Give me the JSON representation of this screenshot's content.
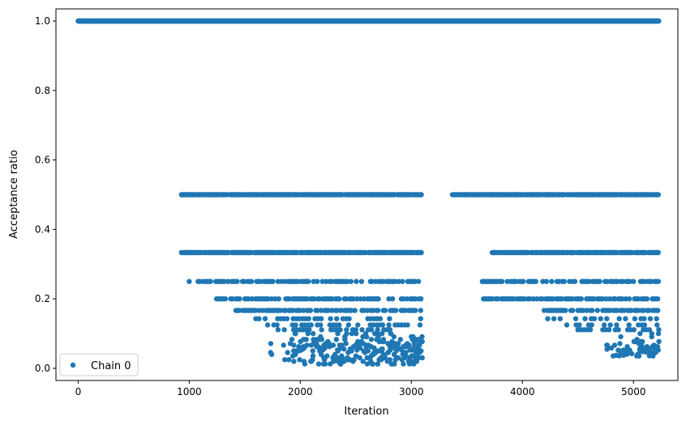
{
  "chart_data": {
    "type": "scatter",
    "title": "",
    "xlabel": "Iteration",
    "ylabel": "Acceptance ratio",
    "xlim": [
      -200,
      5400
    ],
    "ylim": [
      -0.035,
      1.035
    ],
    "xticks": [
      0,
      1000,
      2000,
      3000,
      4000,
      5000
    ],
    "xtick_labels": [
      "0",
      "1000",
      "2000",
      "3000",
      "4000",
      "5000"
    ],
    "yticks": [
      0.0,
      0.2,
      0.4,
      0.6,
      0.8,
      1.0
    ],
    "ytick_labels": [
      "0.0",
      "0.2",
      "0.4",
      "0.6",
      "0.8",
      "1.0"
    ],
    "grid": false,
    "legend": {
      "position": "lower-left",
      "entries": [
        "Chain 0"
      ]
    },
    "series": [
      {
        "name": "Chain 0",
        "color": "#1f77b4",
        "marker": "circle",
        "x_range": [
          0,
          5230
        ],
        "bands": [
          {
            "y": 1.0,
            "x_start": 0,
            "x_end": 5230,
            "density": "solid"
          },
          {
            "y": 0.5,
            "segments": [
              [
                930,
                3090
              ],
              [
                3370,
                5230
              ]
            ],
            "density": "dense"
          },
          {
            "y": 0.3333,
            "segments": [
              [
                930,
                3090
              ],
              [
                3720,
                5230
              ]
            ],
            "density": "dense"
          },
          {
            "y": 0.25,
            "segments": [
              [
                1000,
                3090
              ],
              [
                3640,
                5230
              ]
            ],
            "density": "medium"
          },
          {
            "y": 0.2,
            "segments": [
              [
                1230,
                3090
              ],
              [
                3650,
                5230
              ]
            ],
            "density": "medium"
          },
          {
            "y": 0.1667,
            "segments": [
              [
                1420,
                3090
              ],
              [
                4180,
                5230
              ]
            ],
            "density": "medium"
          },
          {
            "y": 0.1429,
            "segments": [
              [
                1600,
                3090
              ],
              [
                4200,
                5230
              ]
            ],
            "density": "sparse"
          },
          {
            "y": 0.125,
            "segments": [
              [
                1650,
                3090
              ],
              [
                4400,
                5230
              ]
            ],
            "density": "sparse"
          },
          {
            "y": 0.1111,
            "segments": [
              [
                1800,
                3090
              ],
              [
                4500,
                5230
              ]
            ],
            "density": "sparse"
          }
        ],
        "scatter_cloud": [
          {
            "x_range": [
              1700,
              3100
            ],
            "y_range": [
              0.01,
              0.11
            ]
          },
          {
            "x_range": [
              4700,
              5230
            ],
            "y_range": [
              0.035,
              0.11
            ]
          }
        ]
      }
    ]
  }
}
